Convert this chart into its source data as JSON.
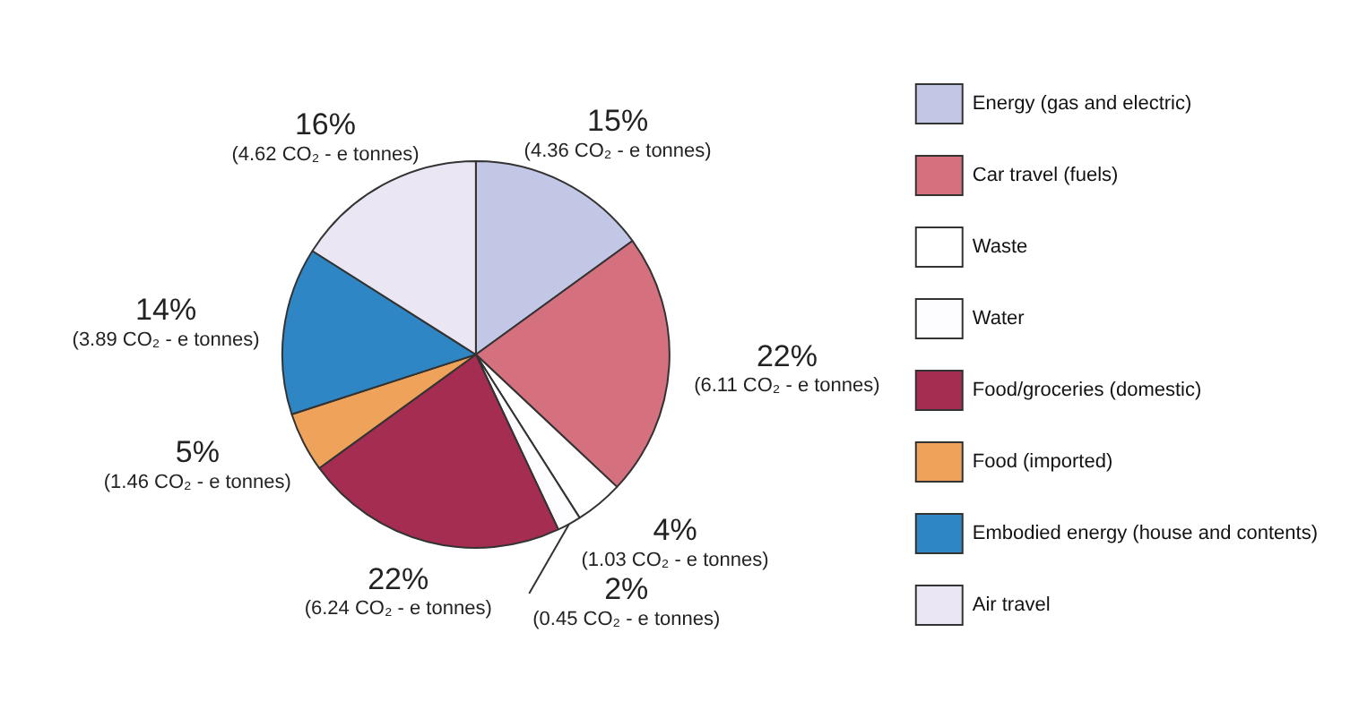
{
  "chart_data": {
    "type": "pie",
    "categories": [
      "Energy (gas and electric)",
      "Car travel (fuels)",
      "Waste",
      "Water",
      "Food/groceries (domestic)",
      "Food (imported)",
      "Embodied energy (house and contents)",
      "Air travel"
    ],
    "values": [
      15,
      22,
      4,
      2,
      22,
      5,
      14,
      16
    ],
    "colors": [
      "#c3c7e6",
      "#d5707f",
      "#ffffff",
      "#fdfdff",
      "#a52d51",
      "#eea25a",
      "#2f86c4",
      "#ebe6f3"
    ],
    "value_labels": [
      "15%\n(4.36 CO₂ - e tonnes)",
      "22%\n(6.11 CO₂ - e tonnes)",
      "4%\n(1.03 CO₂ - e tonnes)",
      "2%\n(0.45 CO₂ - e tonnes)",
      "22%\n(6.24 CO₂ - e tonnes)",
      "5%\n(1.46 CO₂ - e tonnes)",
      "14%\n(3.89 CO₂ - e tonnes)",
      "16%\n(4.62 CO₂ - e tonnes)"
    ],
    "legend": "right"
  }
}
